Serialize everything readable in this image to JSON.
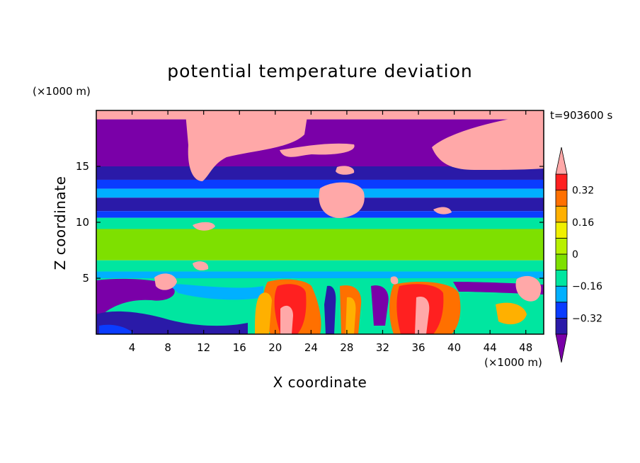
{
  "chart_data": {
    "type": "heatmap",
    "title": "potential temperature deviation",
    "xlabel": "X coordinate",
    "ylabel": "Z coordinate",
    "x_unit_label": "(×1000 m)",
    "y_unit_label": "(×1000 m)",
    "time_label": "t=903600 s",
    "xlim": [
      0,
      50
    ],
    "ylim": [
      0,
      20
    ],
    "x_ticks": [
      "4",
      "8",
      "12",
      "16",
      "20",
      "24",
      "28",
      "32",
      "36",
      "40",
      "44",
      "48"
    ],
    "y_ticks": [
      "5",
      "10",
      "15"
    ],
    "colorbar": {
      "labels": [
        "0.32",
        "0.16",
        "0",
        "−0.16",
        "−0.32"
      ],
      "colors": [
        "#7a00a8",
        "#2a1aa8",
        "#0a3cff",
        "#00b0ff",
        "#00e6a0",
        "#7ee000",
        "#b8f000",
        "#f0f000",
        "#ffb000",
        "#ff7000",
        "#ff2020",
        "#ffa8a8"
      ]
    },
    "bands": [
      {
        "z": [
          19.2,
          20.0
        ],
        "level": "#ffa8a8"
      },
      {
        "z": [
          15.0,
          19.2
        ],
        "level": "#7a00a8"
      },
      {
        "z": [
          13.8,
          15.0
        ],
        "level": "#2a1aa8"
      },
      {
        "z": [
          13.0,
          13.8
        ],
        "level": "#0a3cff"
      },
      {
        "z": [
          12.2,
          13.0
        ],
        "level": "#00b0ff"
      },
      {
        "z": [
          11.0,
          12.2
        ],
        "level": "#2a1aa8"
      },
      {
        "z": [
          10.4,
          11.0
        ],
        "level": "#0a3cff"
      },
      {
        "z": [
          9.4,
          10.4
        ],
        "level": "#00e6a0"
      },
      {
        "z": [
          6.6,
          9.4
        ],
        "level": "#7ee000"
      },
      {
        "z": [
          5.6,
          6.6
        ],
        "level": "#00e6a0"
      },
      {
        "z": [
          5.0,
          5.6
        ],
        "level": "#00b0ff"
      },
      {
        "z": [
          0.0,
          5.0
        ],
        "level": "#00e6a0"
      }
    ]
  }
}
